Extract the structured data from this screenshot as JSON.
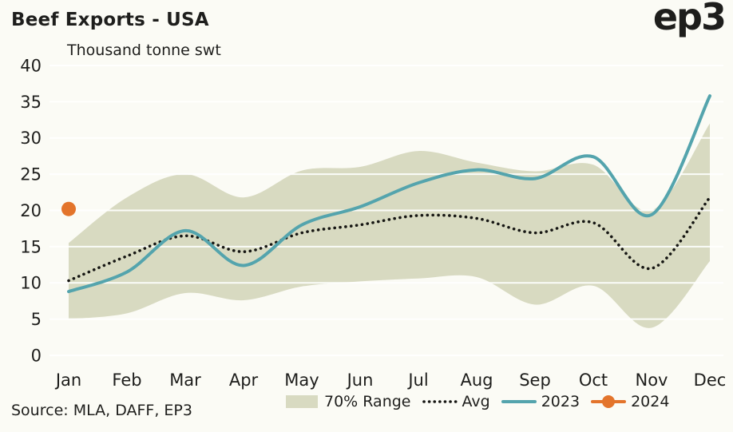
{
  "header": {
    "logo_text": "ep3"
  },
  "chart_data": {
    "type": "line",
    "title": "Beef Exports - USA",
    "subtitle": "Thousand tonne swt",
    "xlabel": "",
    "ylabel": "Thousand tonne swt",
    "categories": [
      "Jan",
      "Feb",
      "Mar",
      "Apr",
      "May",
      "Jun",
      "Jul",
      "Aug",
      "Sep",
      "Oct",
      "Nov",
      "Dec"
    ],
    "ylim": [
      0,
      40
    ],
    "yticks": [
      0,
      5,
      10,
      15,
      20,
      25,
      30,
      35,
      40
    ],
    "grid": true,
    "legend_position": "bottom",
    "background_color": "#fbfbf5",
    "series": [
      {
        "name": "70% Range",
        "type": "band",
        "color": "#d8dac1",
        "upper": [
          15.5,
          21.8,
          25.0,
          21.8,
          25.5,
          26.0,
          28.2,
          26.6,
          25.4,
          26.3,
          20.0,
          32.0
        ],
        "lower": [
          5.0,
          5.8,
          8.6,
          7.6,
          9.5,
          10.2,
          10.6,
          10.8,
          7.0,
          9.6,
          3.8,
          13.0
        ]
      },
      {
        "name": "Avg",
        "type": "dotted",
        "color": "#161613",
        "values": [
          10.3,
          13.7,
          16.5,
          14.3,
          16.9,
          18.0,
          19.3,
          18.9,
          16.9,
          18.3,
          12.0,
          21.8
        ]
      },
      {
        "name": "2023",
        "type": "line",
        "color": "#54a4ad",
        "values": [
          8.8,
          11.5,
          17.2,
          12.4,
          18.0,
          20.5,
          23.8,
          25.6,
          24.4,
          27.4,
          19.4,
          35.8
        ]
      },
      {
        "name": "2024",
        "type": "point",
        "color": "#e3742b",
        "x": "Jan",
        "value": 20.2
      }
    ]
  },
  "footer": {
    "source": "Source: MLA, DAFF, EP3"
  }
}
